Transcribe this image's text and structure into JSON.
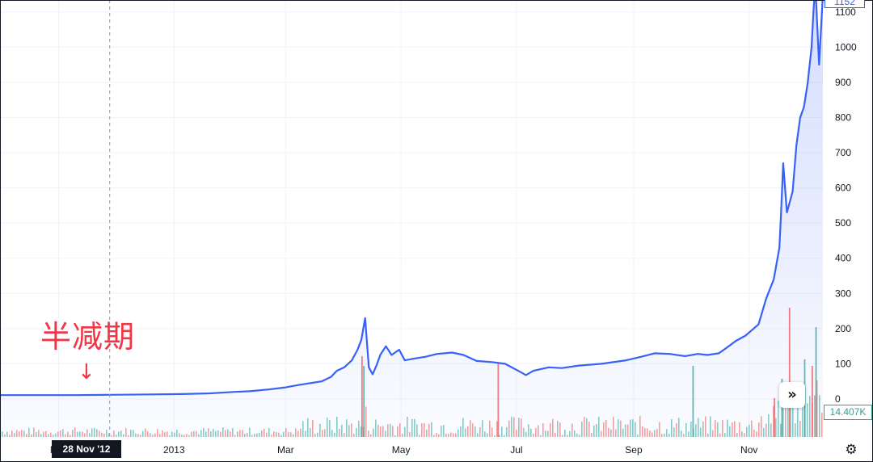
{
  "chart_data": {
    "type": "line",
    "title": "",
    "xlabel": "",
    "ylabel": "",
    "x_ticks": [
      "Nov",
      "2013",
      "Mar",
      "May",
      "Jul",
      "Sep",
      "Nov"
    ],
    "y_ticks": [
      "0",
      "100",
      "200",
      "300",
      "400",
      "500",
      "600",
      "700",
      "800",
      "900",
      "1000",
      "1100"
    ],
    "ylim": [
      0,
      1150
    ],
    "grid": true,
    "series": [
      {
        "color": "#3861f6",
        "x": [
          "2012-10-01",
          "2012-10-20",
          "2012-11-10",
          "2012-11-28",
          "2012-12-20",
          "2013-01-05",
          "2013-01-20",
          "2013-02-01",
          "2013-02-10",
          "2013-02-20",
          "2013-03-01",
          "2013-03-08",
          "2013-03-15",
          "2013-03-20",
          "2013-03-25",
          "2013-03-28",
          "2013-04-01",
          "2013-04-03",
          "2013-04-05",
          "2013-04-08",
          "2013-04-10",
          "2013-04-12",
          "2013-04-14",
          "2013-04-16",
          "2013-04-18",
          "2013-04-20",
          "2013-04-23",
          "2013-04-26",
          "2013-04-30",
          "2013-05-03",
          "2013-05-08",
          "2013-05-14",
          "2013-05-20",
          "2013-05-28",
          "2013-06-03",
          "2013-06-10",
          "2013-06-18",
          "2013-06-25",
          "2013-07-02",
          "2013-07-06",
          "2013-07-10",
          "2013-07-18",
          "2013-07-25",
          "2013-08-03",
          "2013-08-15",
          "2013-08-28",
          "2013-09-05",
          "2013-09-12",
          "2013-09-20",
          "2013-09-28",
          "2013-10-05",
          "2013-10-10",
          "2013-10-16",
          "2013-10-20",
          "2013-10-25",
          "2013-10-30",
          "2013-11-03",
          "2013-11-06",
          "2013-11-10",
          "2013-11-14",
          "2013-11-17",
          "2013-11-18",
          "2013-11-19",
          "2013-11-21",
          "2013-11-24",
          "2013-11-26",
          "2013-11-28",
          "2013-11-30",
          "2013-12-02",
          "2013-12-04",
          "2013-12-05",
          "2013-12-06",
          "2013-12-08",
          "2013-12-10"
        ],
        "y": [
          11,
          11,
          11,
          12,
          13,
          14,
          16,
          20,
          22,
          27,
          33,
          40,
          46,
          50,
          63,
          80,
          90,
          100,
          110,
          140,
          168,
          230,
          90,
          70,
          95,
          125,
          150,
          125,
          140,
          110,
          115,
          120,
          128,
          132,
          125,
          108,
          105,
          100,
          80,
          68,
          80,
          90,
          88,
          95,
          100,
          110,
          120,
          130,
          128,
          122,
          128,
          125,
          130,
          145,
          165,
          180,
          198,
          212,
          285,
          340,
          430,
          540,
          670,
          530,
          590,
          720,
          800,
          830,
          900,
          1000,
          1100,
          1180,
          950,
          1150
        ]
      }
    ],
    "volume": {
      "x": [
        "2013-04-10",
        "2013-04-11",
        "2013-06-21",
        "2013-10-02",
        "2013-11-14",
        "2013-11-18",
        "2013-11-22",
        "2013-11-30",
        "2013-12-04",
        "2013-12-06"
      ],
      "values": [
        25,
        22,
        23,
        22,
        12,
        18,
        40,
        24,
        22,
        34
      ],
      "last_value": "14.407K"
    },
    "crosshair": {
      "x": "2012-11-28",
      "label": "28 Nov '12"
    },
    "annotation": {
      "text": "半减期",
      "arrow": "↓"
    },
    "last_price": "1152"
  },
  "controls": {
    "scroll_glyph": "»",
    "settings_glyph": "⚙"
  },
  "colors": {
    "line": "#3861f6",
    "up_volume": "#26a69a",
    "down_volume": "#ef5350",
    "grid": "#f0f3fa",
    "annotation": "#f23645"
  }
}
